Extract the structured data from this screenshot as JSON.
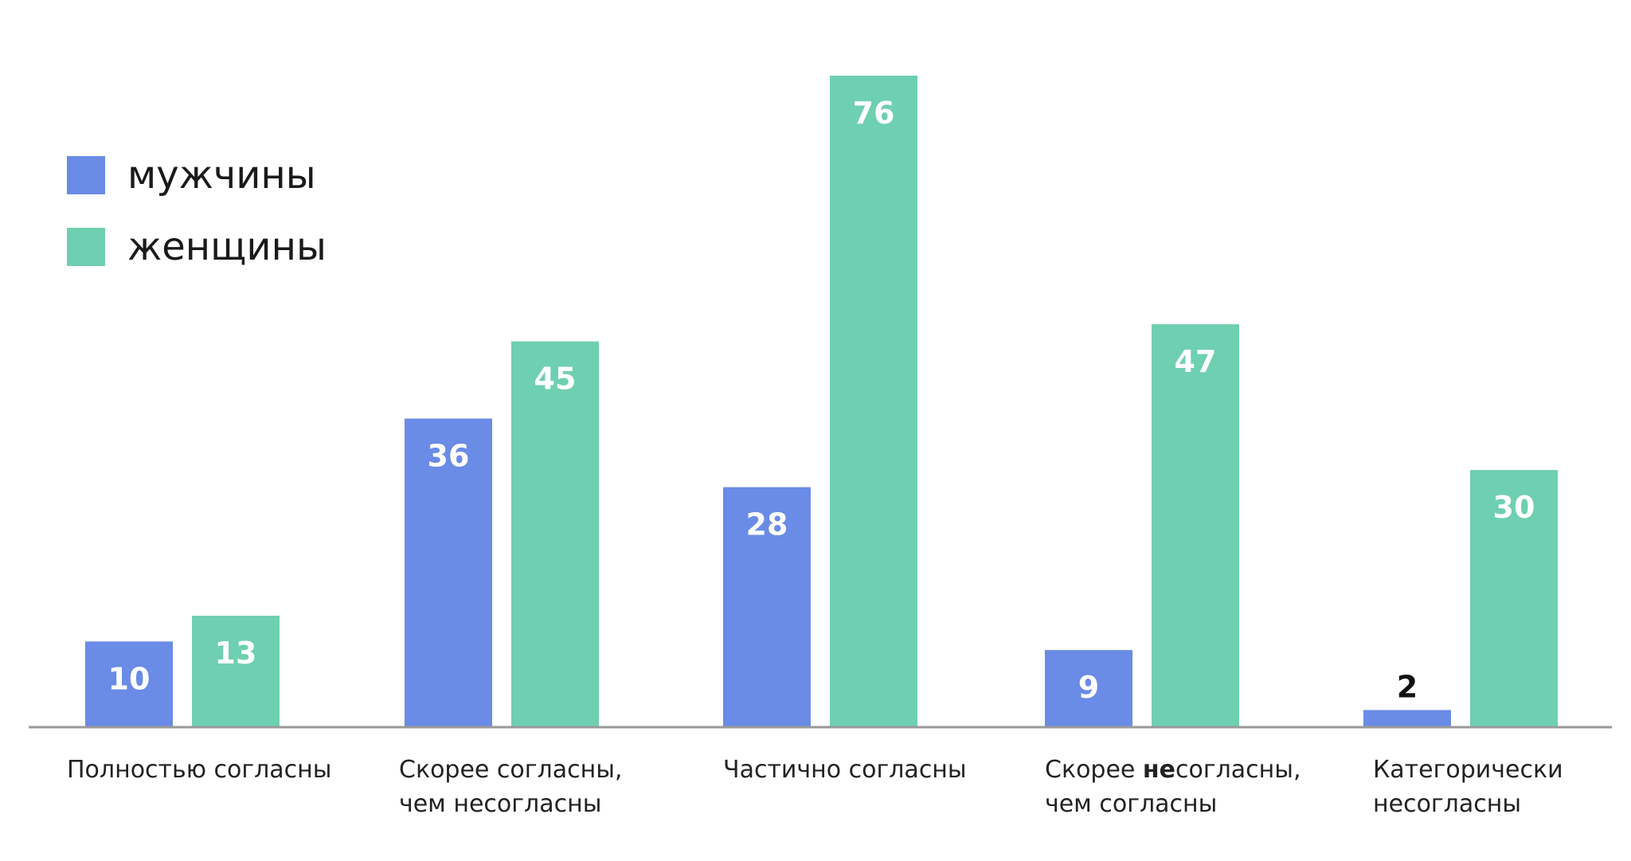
{
  "chart_data": {
    "type": "bar",
    "categories": [
      [
        "Полностью согласны"
      ],
      [
        "Скорее согласны,",
        "чем несогласны"
      ],
      [
        "Частично согласны"
      ],
      [
        [
          "Скорее ",
          "не",
          "согласны,"
        ],
        "чем согласны"
      ],
      [
        "Категорически",
        "несогласны"
      ]
    ],
    "series": [
      {
        "name": "мужчины",
        "color": "#6a8be6",
        "values": [
          10,
          36,
          28,
          9,
          2
        ]
      },
      {
        "name": "женщины",
        "color": "#6ecfb1",
        "values": [
          13,
          45,
          76,
          47,
          30
        ]
      }
    ],
    "ylim": [
      0,
      80
    ],
    "legend_position": "top-left",
    "grid": false,
    "colors": {
      "axis": "#9a9a9a",
      "bar_label": "#ffffff",
      "bar_label_outside": "#111111"
    }
  }
}
